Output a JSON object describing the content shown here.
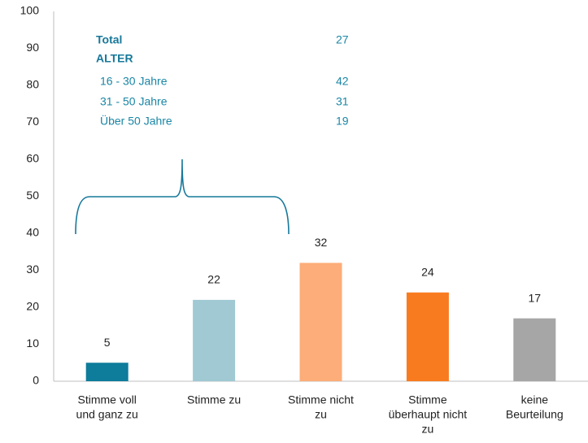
{
  "chart_data": {
    "type": "bar",
    "categories": [
      [
        "Stimme voll",
        "und ganz zu"
      ],
      [
        "Stimme zu"
      ],
      [
        "Stimme nicht",
        "zu"
      ],
      [
        "Stimme",
        "überhaupt nicht",
        "zu"
      ],
      [
        "keine",
        "Beurteilung"
      ]
    ],
    "values": [
      5,
      22,
      32,
      24,
      17
    ],
    "colors": [
      "#0e7c9b",
      "#a0c9d3",
      "#fcad79",
      "#f97b20",
      "#a6a6a6"
    ],
    "ylim": [
      0,
      100
    ],
    "yticks": [
      0,
      10,
      20,
      30,
      40,
      50,
      60,
      70,
      80,
      90,
      100
    ],
    "grid": false,
    "annotation": [
      {
        "label": "Total",
        "value": 27,
        "bold": true
      },
      {
        "label": "ALTER",
        "bold": true
      },
      {
        "label": "16 - 30 Jahre",
        "value": 42
      },
      {
        "label": "31 - 50 Jahre",
        "value": 31
      },
      {
        "label": "Über 50 Jahre",
        "value": 19
      }
    ]
  }
}
